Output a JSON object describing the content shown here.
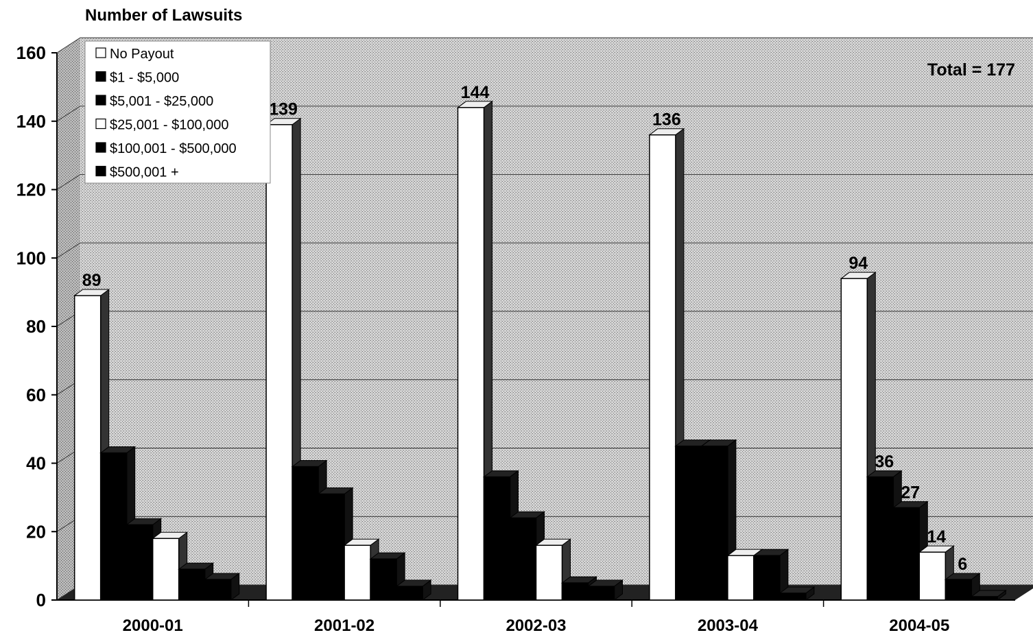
{
  "chart_data": {
    "type": "bar",
    "ylabel": "Number of Lawsuits",
    "ylim": [
      0,
      160
    ],
    "yticks": [
      "0",
      "20",
      "40",
      "60",
      "80",
      "100",
      "120",
      "140",
      "160"
    ],
    "categories": [
      "2000-01",
      "2001-02",
      "2002-03",
      "2003-04",
      "2004-05"
    ],
    "annotation": "Total = 177",
    "grid": true,
    "legend_position": "top-left",
    "series": [
      {
        "name": "No Payout",
        "values": [
          89,
          139,
          144,
          136,
          94
        ],
        "value_labels": [
          "89",
          "139",
          "144",
          "136",
          "94"
        ],
        "color": "#ffffff"
      },
      {
        "name": "$1 - $5,000",
        "values": [
          43,
          39,
          36,
          45,
          36
        ],
        "value_labels": [
          "",
          "",
          "",
          "",
          "36"
        ],
        "color": "#000000"
      },
      {
        "name": "$5,001 - $25,000",
        "values": [
          22,
          31,
          24,
          45,
          27
        ],
        "value_labels": [
          "",
          "",
          "",
          "",
          "27"
        ],
        "color": "#000000"
      },
      {
        "name": "$25,001 - $100,000",
        "values": [
          18,
          16,
          16,
          13,
          14
        ],
        "value_labels": [
          "",
          "",
          "",
          "",
          "14"
        ],
        "color": "#ffffff"
      },
      {
        "name": "$100,001 - $500,000",
        "values": [
          9,
          12,
          5,
          13,
          6
        ],
        "value_labels": [
          "",
          "",
          "",
          "",
          "6"
        ],
        "color": "#000000"
      },
      {
        "name": "$500,001 +",
        "values": [
          6,
          4,
          4,
          2,
          1
        ],
        "value_labels": [
          "",
          "",
          "",
          "",
          ""
        ],
        "color": "#000000"
      }
    ]
  }
}
